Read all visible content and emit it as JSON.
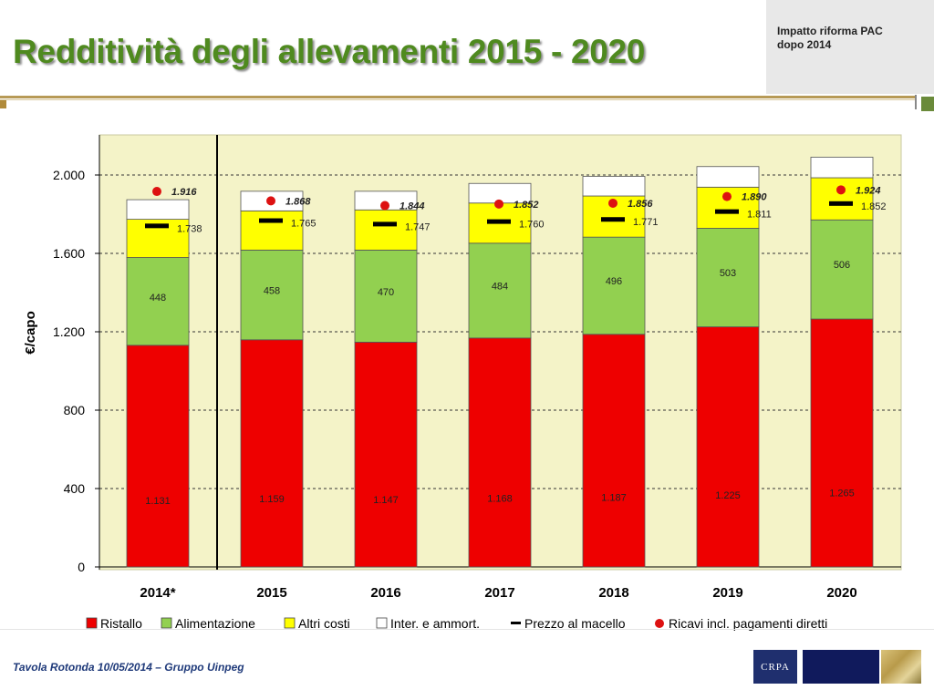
{
  "header": {
    "title": "Redditività degli allevamenti 2015 - 2020",
    "corner_text_1": "Impatto riforma PAC",
    "corner_text_2": "dopo 2014"
  },
  "footer": {
    "text": "Tavola Rotonda  10/05/2014 – Gruppo Uinpeg",
    "logo_text": "CRPA"
  },
  "colors": {
    "ristallo": "#ee0000",
    "alimentazione": "#92d050",
    "altri_costi": "#ffff00",
    "inter_ammort": "#ffffff",
    "prezzo": "#000000",
    "ricavi": "#dd1111",
    "plot_bg": "#f4f3c8",
    "title_green": "#4f8a1f"
  },
  "chart_data": {
    "type": "bar",
    "stacked": true,
    "categories": [
      "2014*",
      "2015",
      "2016",
      "2017",
      "2018",
      "2019",
      "2020"
    ],
    "ylabel": "€/capo",
    "ylim": [
      0,
      2200
    ],
    "yticks": [
      0,
      400,
      800,
      1200,
      1600,
      2000
    ],
    "ytick_labels": [
      "0",
      "400",
      "800",
      "1.200",
      "1.600",
      "2.000"
    ],
    "grid": "horizontal dashed",
    "legend_position": "bottom",
    "series": [
      {
        "name": "Ristallo",
        "values": [
          1131,
          1159,
          1147,
          1168,
          1187,
          1225,
          1265
        ],
        "labels": [
          "1.131",
          "1.159",
          "1.147",
          "1.168",
          "1.187",
          "1.225",
          "1.265"
        ]
      },
      {
        "name": "Alimentazione",
        "values": [
          448,
          458,
          470,
          484,
          496,
          503,
          506
        ],
        "labels": [
          "448",
          "458",
          "470",
          "484",
          "496",
          "503",
          "506"
        ]
      },
      {
        "name": "Altri costi",
        "values": [
          195,
          200,
          205,
          205,
          210,
          210,
          215
        ]
      },
      {
        "name": "Inter. e ammort.",
        "values": [
          100,
          100,
          95,
          100,
          100,
          105,
          105
        ]
      }
    ],
    "markers": [
      {
        "name": "Prezzo al macello",
        "values": [
          1738,
          1765,
          1747,
          1760,
          1771,
          1811,
          1852
        ],
        "labels": [
          "1.738",
          "1.765",
          "1.747",
          "1.760",
          "1.771",
          "1.811",
          "1.852"
        ]
      },
      {
        "name": "Ricavi incl. pagamenti diretti",
        "values": [
          1916,
          1868,
          1844,
          1852,
          1856,
          1890,
          1924
        ],
        "labels": [
          "1.916",
          "1.868",
          "1.844",
          "1.852",
          "1.856",
          "1.890",
          "1.924"
        ]
      }
    ]
  }
}
